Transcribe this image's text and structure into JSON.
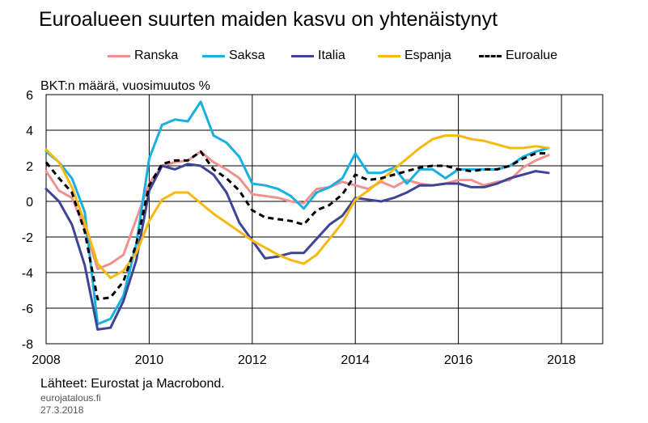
{
  "title": "Euroalueen suurten maiden kasvu on yhtenäistynyt",
  "ylabel": "BKT:n määrä, vuosimuutos %",
  "source": "Lähteet: Eurostat ja Macrobond.",
  "site": "eurojatalous.fi",
  "date": "27.3.2018",
  "chart_data": {
    "type": "line",
    "title": "Euroalueen suurten maiden kasvu on yhtenäistynyt",
    "ylabel": "BKT:n määrä, vuosimuutos %",
    "xlim": [
      2008,
      2018.8
    ],
    "ylim": [
      -8,
      6
    ],
    "xticks": [
      "2008",
      "2010",
      "2012",
      "2014",
      "2016",
      "2018"
    ],
    "yticks": [
      "6",
      "4",
      "2",
      "0",
      "-2",
      "-4",
      "-6",
      "-8"
    ],
    "grid": true,
    "legend_position": "top",
    "x": [
      2008.0,
      2008.25,
      2008.5,
      2008.75,
      2009.0,
      2009.25,
      2009.5,
      2009.75,
      2010.0,
      2010.25,
      2010.5,
      2010.75,
      2011.0,
      2011.25,
      2011.5,
      2011.75,
      2012.0,
      2012.25,
      2012.5,
      2012.75,
      2013.0,
      2013.25,
      2013.5,
      2013.75,
      2014.0,
      2014.25,
      2014.5,
      2014.75,
      2015.0,
      2015.25,
      2015.5,
      2015.75,
      2016.0,
      2016.25,
      2016.5,
      2016.75,
      2017.0,
      2017.25,
      2017.5,
      2017.75
    ],
    "series": [
      {
        "name": "Ranska",
        "color": "#f0918f",
        "dash": false,
        "values": [
          1.7,
          0.6,
          0.2,
          -1.5,
          -3.8,
          -3.5,
          -3.0,
          -1.0,
          1.0,
          2.0,
          2.2,
          2.3,
          2.8,
          2.2,
          1.8,
          1.3,
          0.4,
          0.3,
          0.2,
          0.0,
          -0.1,
          0.7,
          0.8,
          1.1,
          0.9,
          0.7,
          1.1,
          0.8,
          1.2,
          1.0,
          0.9,
          1.0,
          1.2,
          1.2,
          0.9,
          1.1,
          1.2,
          1.9,
          2.3,
          2.6
        ]
      },
      {
        "name": "Saksa",
        "color": "#17b0e0",
        "dash": false,
        "values": [
          2.8,
          2.2,
          1.3,
          -0.6,
          -6.9,
          -6.6,
          -5.3,
          -2.4,
          2.4,
          4.3,
          4.6,
          4.5,
          5.6,
          3.7,
          3.3,
          2.5,
          1.0,
          0.9,
          0.7,
          0.3,
          -0.4,
          0.5,
          0.8,
          1.3,
          2.7,
          1.6,
          1.6,
          1.9,
          1.0,
          1.8,
          1.8,
          1.3,
          1.8,
          1.8,
          1.8,
          1.8,
          2.0,
          2.5,
          2.8,
          3.0
        ]
      },
      {
        "name": "Italia",
        "color": "#3e4496",
        "dash": false,
        "values": [
          0.7,
          0.0,
          -1.3,
          -3.6,
          -7.2,
          -7.1,
          -5.6,
          -3.3,
          0.6,
          2.0,
          1.8,
          2.1,
          2.0,
          1.5,
          0.5,
          -1.2,
          -2.2,
          -3.2,
          -3.1,
          -2.9,
          -2.9,
          -2.1,
          -1.3,
          -0.8,
          0.2,
          0.1,
          0.0,
          0.2,
          0.5,
          0.9,
          0.9,
          1.0,
          1.0,
          0.8,
          0.8,
          1.0,
          1.3,
          1.5,
          1.7,
          1.6
        ]
      },
      {
        "name": "Espanja",
        "color": "#f6b90f",
        "dash": false,
        "values": [
          2.9,
          2.2,
          0.8,
          -1.2,
          -3.5,
          -4.3,
          -3.9,
          -2.9,
          -1.1,
          0.1,
          0.5,
          0.5,
          -0.1,
          -0.7,
          -1.2,
          -1.7,
          -2.2,
          -2.6,
          -3.0,
          -3.3,
          -3.5,
          -3.0,
          -2.1,
          -1.2,
          0.1,
          0.6,
          1.2,
          1.8,
          2.4,
          3.0,
          3.5,
          3.7,
          3.7,
          3.5,
          3.4,
          3.2,
          3.0,
          3.0,
          3.1,
          3.0
        ]
      },
      {
        "name": "Euroalue",
        "color": "#000000",
        "dash": true,
        "values": [
          2.2,
          1.3,
          0.5,
          -1.7,
          -5.5,
          -5.4,
          -4.5,
          -2.4,
          0.9,
          2.1,
          2.3,
          2.3,
          2.8,
          1.8,
          1.3,
          0.6,
          -0.5,
          -0.9,
          -1.0,
          -1.1,
          -1.3,
          -0.5,
          -0.2,
          0.4,
          1.5,
          1.2,
          1.3,
          1.5,
          1.7,
          1.9,
          2.0,
          2.0,
          1.8,
          1.7,
          1.8,
          1.8,
          2.0,
          2.4,
          2.7,
          2.7
        ]
      }
    ]
  }
}
